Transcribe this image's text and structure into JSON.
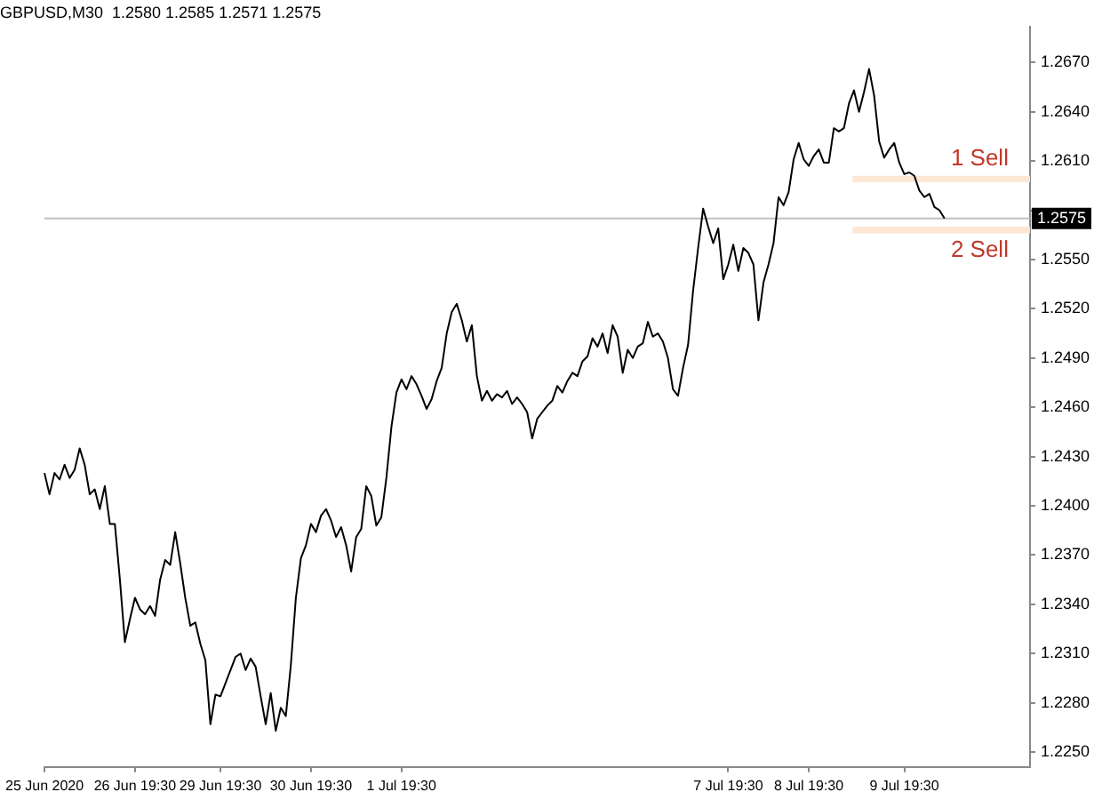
{
  "chart_data": {
    "type": "line",
    "title": "GBPUSD,M30  1.2580 1.2585 1.2571 1.2575",
    "categories": [
      "25 Jun 2020",
      null,
      null,
      null,
      null,
      null,
      null,
      null,
      null,
      null,
      null,
      null,
      null,
      null,
      null,
      null,
      null,
      null,
      "26 Jun 19:30",
      null,
      null,
      null,
      null,
      null,
      null,
      null,
      null,
      null,
      null,
      null,
      null,
      null,
      null,
      null,
      null,
      "29 Jun 19:30",
      null,
      null,
      null,
      null,
      null,
      null,
      null,
      null,
      null,
      null,
      null,
      null,
      null,
      null,
      null,
      null,
      null,
      "30 Jun 19:30",
      null,
      null,
      null,
      null,
      null,
      null,
      null,
      null,
      null,
      null,
      null,
      null,
      null,
      null,
      null,
      null,
      null,
      "1 Jul 19:30",
      null,
      null,
      null,
      null,
      null,
      null,
      null,
      null,
      null,
      null,
      null,
      null,
      null,
      null,
      null,
      null,
      null,
      null,
      null,
      null,
      null,
      null,
      null,
      null,
      null,
      null,
      null,
      null,
      null,
      null,
      null,
      null,
      null,
      null,
      null,
      null,
      null,
      null,
      null,
      null,
      null,
      null,
      null,
      null,
      null,
      null,
      null,
      null,
      null,
      null,
      null,
      null,
      null,
      null,
      null,
      null,
      null,
      null,
      null,
      null,
      null,
      null,
      null,
      null,
      "7 Jul 19:30",
      null,
      null,
      null,
      null,
      null,
      null,
      null,
      null,
      null,
      null,
      null,
      null,
      null,
      null,
      null,
      "8 Jul 19:30",
      null,
      null,
      null,
      null,
      null,
      null,
      null,
      null,
      null,
      null,
      null,
      null,
      null,
      null,
      null,
      null,
      null,
      null,
      "9 Jul 19:30",
      null,
      null,
      null,
      null,
      null,
      null,
      null,
      null,
      null,
      null,
      null,
      null,
      null,
      null,
      null,
      null,
      null,
      null,
      null,
      null,
      null,
      null,
      null,
      null,
      null
    ],
    "series": [
      {
        "color": "#000000",
        "values": [
          1.242,
          1.2407,
          1.242,
          1.2416,
          1.2425,
          1.2417,
          1.2422,
          1.2435,
          1.2425,
          1.2407,
          1.241,
          1.2398,
          1.2412,
          1.2389,
          1.2389,
          1.2355,
          1.2317,
          1.2331,
          1.2344,
          1.2337,
          1.2334,
          1.2339,
          1.2333,
          1.2355,
          1.2367,
          1.2364,
          1.2384,
          1.2365,
          1.2344,
          1.2327,
          1.2329,
          1.2316,
          1.2306,
          1.2267,
          1.2285,
          1.2284,
          1.2292,
          1.23,
          1.2308,
          1.231,
          1.23,
          1.2307,
          1.2302,
          1.2284,
          1.2267,
          1.2286,
          1.2263,
          1.2277,
          1.2272,
          1.2303,
          1.2344,
          1.2368,
          1.2376,
          1.2389,
          1.2384,
          1.2394,
          1.2398,
          1.2391,
          1.2381,
          1.2387,
          1.2376,
          1.236,
          1.2381,
          1.2386,
          1.2412,
          1.2406,
          1.2388,
          1.2393,
          1.2417,
          1.2448,
          1.2469,
          1.2477,
          1.2471,
          1.2479,
          1.2474,
          1.2467,
          1.2459,
          1.2465,
          1.2476,
          1.2484,
          1.2505,
          1.2518,
          1.2523,
          1.2513,
          1.25,
          1.251,
          1.2479,
          1.2464,
          1.247,
          1.2464,
          1.2468,
          1.2466,
          1.247,
          1.2462,
          1.2466,
          1.2462,
          1.2457,
          1.2441,
          1.2453,
          1.2457,
          1.2461,
          1.2464,
          1.2473,
          1.2469,
          1.2476,
          1.2481,
          1.2479,
          1.2488,
          1.2491,
          1.2502,
          1.2497,
          1.2505,
          1.2493,
          1.251,
          1.2503,
          1.2481,
          1.2495,
          1.249,
          1.2497,
          1.2499,
          1.2512,
          1.2503,
          1.2505,
          1.25,
          1.249,
          1.2471,
          1.2467,
          1.2484,
          1.2498,
          1.2531,
          1.2557,
          1.2581,
          1.257,
          1.256,
          1.2569,
          1.2538,
          1.2547,
          1.2559,
          1.2543,
          1.2557,
          1.2554,
          1.2547,
          1.2513,
          1.2536,
          1.2547,
          1.256,
          1.2588,
          1.2583,
          1.2591,
          1.2611,
          1.2621,
          1.2611,
          1.2607,
          1.2613,
          1.2617,
          1.2609,
          1.2609,
          1.263,
          1.2628,
          1.263,
          1.2645,
          1.2653,
          1.264,
          1.2652,
          1.2666,
          1.265,
          1.2622,
          1.2612,
          1.2617,
          1.2621,
          1.2609,
          1.2602,
          1.2603,
          1.2601,
          1.2592,
          1.2588,
          1.259,
          1.2582,
          1.258,
          1.2575,
          null,
          null,
          null,
          null,
          null,
          null,
          null,
          null,
          null,
          null,
          null,
          null,
          null,
          null,
          null,
          null,
          null
        ]
      }
    ],
    "ylim": [
      1.2241,
      1.2692
    ],
    "yticks": [
      {
        "value": 1.225,
        "label": "1.2250"
      },
      {
        "value": 1.228,
        "label": "1.2280"
      },
      {
        "value": 1.231,
        "label": "1.2310"
      },
      {
        "value": 1.234,
        "label": "1.2340"
      },
      {
        "value": 1.237,
        "label": "1.2370"
      },
      {
        "value": 1.24,
        "label": "1.2400"
      },
      {
        "value": 1.243,
        "label": "1.2430"
      },
      {
        "value": 1.246,
        "label": "1.2460"
      },
      {
        "value": 1.249,
        "label": "1.2490"
      },
      {
        "value": 1.252,
        "label": "1.2520"
      },
      {
        "value": 1.255,
        "label": "1.2550"
      },
      {
        "value": 1.258,
        "label": null
      },
      {
        "value": 1.261,
        "label": "1.2610"
      },
      {
        "value": 1.264,
        "label": "1.2640"
      },
      {
        "value": 1.267,
        "label": "1.2670"
      }
    ],
    "marker": "none",
    "ref_lines": [
      {
        "axis": "y",
        "value": 1.2575,
        "label": "1.2575",
        "color": "#c0c0c0"
      }
    ],
    "bands": [
      {
        "axis": "y",
        "from": 1.2597,
        "to": 1.2601,
        "label": "1 Sell",
        "color": "#fbe7d3"
      },
      {
        "axis": "y",
        "from": 1.2566,
        "to": 1.257,
        "label": "2 Sell",
        "color": "#fbe7d3"
      }
    ]
  }
}
